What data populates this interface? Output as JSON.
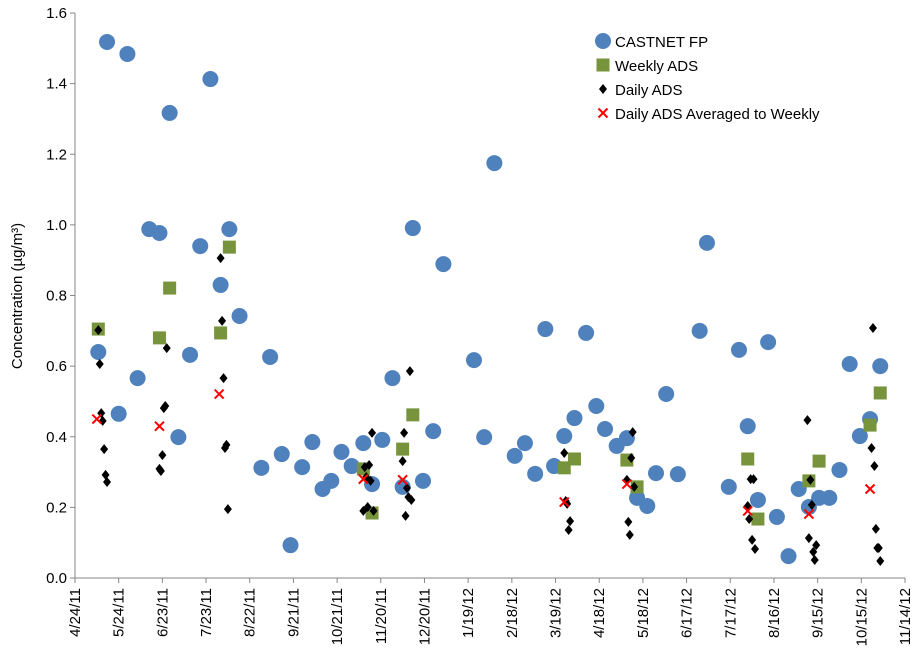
{
  "chart_data": {
    "type": "scatter",
    "y_label": "Concentration (µg/m³)",
    "xlim": [
      "2011-04-24",
      "2012-11-14"
    ],
    "xticks": [
      {
        "value": "2011-04-24",
        "label": "4/24/11"
      },
      {
        "value": "2011-05-24",
        "label": "5/24/11"
      },
      {
        "value": "2011-06-23",
        "label": "6/23/11"
      },
      {
        "value": "2011-07-23",
        "label": "7/23/11"
      },
      {
        "value": "2011-08-22",
        "label": "8/22/11"
      },
      {
        "value": "2011-09-21",
        "label": "9/21/11"
      },
      {
        "value": "2011-10-21",
        "label": "10/21/11"
      },
      {
        "value": "2011-11-20",
        "label": "11/20/11"
      },
      {
        "value": "2011-12-20",
        "label": "12/20/11"
      },
      {
        "value": "2012-01-19",
        "label": "1/19/12"
      },
      {
        "value": "2012-02-18",
        "label": "2/18/12"
      },
      {
        "value": "2012-03-19",
        "label": "3/19/12"
      },
      {
        "value": "2012-04-18",
        "label": "4/18/12"
      },
      {
        "value": "2012-05-18",
        "label": "5/18/12"
      },
      {
        "value": "2012-06-17",
        "label": "6/17/12"
      },
      {
        "value": "2012-07-17",
        "label": "7/17/12"
      },
      {
        "value": "2012-08-16",
        "label": "8/16/12"
      },
      {
        "value": "2012-09-15",
        "label": "9/15/12"
      },
      {
        "value": "2012-10-15",
        "label": "10/15/12"
      },
      {
        "value": "2012-11-14",
        "label": "11/14/12"
      }
    ],
    "ylim": [
      0,
      1.6
    ],
    "yticks": [
      {
        "value": 0,
        "label": "0.0"
      },
      0.2,
      0.4,
      0.6,
      0.8,
      {
        "value": 1,
        "label": "1.0"
      },
      1.2,
      1.4,
      1.6
    ],
    "grid": false,
    "legend": "upper right",
    "series": [
      {
        "name": "CASTNET FP",
        "marker": "circle",
        "color": "#4f81bd",
        "x": [
          "2011-05-10",
          "2011-05-16",
          "2011-05-24",
          "2011-05-30",
          "2011-06-06",
          "2011-06-14",
          "2011-06-21",
          "2011-06-28",
          "2011-07-04",
          "2011-07-12",
          "2011-07-19",
          "2011-07-26",
          "2011-08-02",
          "2011-08-08",
          "2011-08-15",
          "2011-08-30",
          "2011-09-05",
          "2011-09-13",
          "2011-09-19",
          "2011-09-27",
          "2011-10-04",
          "2011-10-11",
          "2011-10-17",
          "2011-10-24",
          "2011-10-31",
          "2011-11-08",
          "2011-11-14",
          "2011-11-21",
          "2011-11-28",
          "2011-12-05",
          "2011-12-12",
          "2011-12-19",
          "2011-12-26",
          "2012-01-02",
          "2012-01-23",
          "2012-01-30",
          "2012-02-06",
          "2012-02-20",
          "2012-02-27",
          "2012-03-05",
          "2012-03-12",
          "2012-03-18",
          "2012-03-25",
          "2012-04-01",
          "2012-04-09",
          "2012-04-16",
          "2012-04-22",
          "2012-04-30",
          "2012-05-07",
          "2012-05-14",
          "2012-05-21",
          "2012-05-27",
          "2012-06-03",
          "2012-06-11",
          "2012-06-26",
          "2012-07-01",
          "2012-07-16",
          "2012-07-23",
          "2012-07-29",
          "2012-08-05",
          "2012-08-12",
          "2012-08-18",
          "2012-08-26",
          "2012-09-02",
          "2012-09-09",
          "2012-09-16",
          "2012-09-23",
          "2012-09-30",
          "2012-10-07",
          "2012-10-14",
          "2012-10-21",
          "2012-10-28"
        ],
        "values": [
          0.64,
          1.518,
          0.465,
          1.484,
          0.566,
          0.988,
          0.977,
          1.317,
          0.399,
          0.632,
          0.94,
          1.413,
          0.83,
          0.988,
          0.742,
          0.312,
          0.626,
          0.351,
          0.093,
          0.314,
          0.385,
          0.252,
          0.275,
          0.357,
          0.317,
          0.382,
          0.266,
          0.391,
          0.566,
          0.258,
          0.991,
          0.275,
          0.416,
          0.889,
          0.617,
          0.399,
          1.175,
          0.346,
          0.382,
          0.295,
          0.705,
          0.317,
          0.402,
          0.453,
          0.694,
          0.487,
          0.422,
          0.374,
          0.396,
          0.227,
          0.204,
          0.297,
          0.521,
          0.294,
          0.7,
          0.949,
          0.258,
          0.646,
          0.43,
          0.221,
          0.668,
          0.173,
          0.062,
          0.252,
          0.201,
          0.227,
          0.227,
          0.306,
          0.606,
          0.402,
          0.45,
          0.6
        ]
      },
      {
        "name": "Weekly ADS",
        "marker": "square",
        "color": "#77933c",
        "x": [
          "2011-05-10",
          "2011-06-21",
          "2011-06-28",
          "2011-08-02",
          "2011-08-08",
          "2011-11-08",
          "2011-11-14",
          "2011-12-05",
          "2011-12-12",
          "2012-03-25",
          "2012-04-01",
          "2012-05-07",
          "2012-05-14",
          "2012-07-29",
          "2012-08-05",
          "2012-09-09",
          "2012-09-16",
          "2012-10-21",
          "2012-10-28"
        ],
        "values": [
          0.705,
          0.68,
          0.821,
          0.694,
          0.937,
          0.309,
          0.184,
          0.365,
          0.462,
          0.312,
          0.337,
          0.334,
          0.258,
          0.337,
          0.167,
          0.275,
          0.331,
          0.433,
          0.524
        ]
      },
      {
        "name": "Daily ADS",
        "marker": "diamond",
        "color": "#000000",
        "x": [
          "2011-05-10",
          "2011-05-11",
          "2011-05-12",
          "2011-05-13",
          "2011-05-14",
          "2011-05-15",
          "2011-05-16",
          "2011-06-21",
          "2011-06-22",
          "2011-06-23",
          "2011-06-24",
          "2011-06-25",
          "2011-06-26",
          "2011-08-02",
          "2011-08-03",
          "2011-08-04",
          "2011-08-05",
          "2011-08-06",
          "2011-08-07",
          "2011-11-08",
          "2011-11-09",
          "2011-11-10",
          "2011-11-11",
          "2011-11-12",
          "2011-11-13",
          "2011-11-14",
          "2011-11-15",
          "2011-12-05",
          "2011-12-06",
          "2011-12-07",
          "2011-12-08",
          "2011-12-09",
          "2011-12-10",
          "2011-12-11",
          "2012-03-25",
          "2012-03-26",
          "2012-03-27",
          "2012-03-28",
          "2012-03-29",
          "2012-05-07",
          "2012-05-08",
          "2012-05-09",
          "2012-05-10",
          "2012-05-11",
          "2012-05-12",
          "2012-07-29",
          "2012-07-30",
          "2012-07-31",
          "2012-08-01",
          "2012-08-02",
          "2012-08-03",
          "2012-09-08",
          "2012-09-09",
          "2012-09-10",
          "2012-09-11",
          "2012-09-12",
          "2012-09-13",
          "2012-09-14",
          "2012-10-22",
          "2012-10-23",
          "2012-10-24",
          "2012-10-25",
          "2012-10-26",
          "2012-10-27",
          "2012-10-28"
        ],
        "values": [
          0.702,
          0.606,
          0.467,
          0.445,
          0.365,
          0.292,
          0.272,
          0.309,
          0.303,
          0.348,
          0.481,
          0.487,
          0.651,
          0.906,
          0.728,
          0.566,
          0.368,
          0.377,
          0.195,
          0.19,
          0.314,
          0.286,
          0.201,
          0.32,
          0.275,
          0.411,
          0.19,
          0.331,
          0.411,
          0.176,
          0.255,
          0.229,
          0.586,
          0.221,
          0.354,
          0.218,
          0.21,
          0.136,
          0.161,
          0.278,
          0.159,
          0.122,
          0.34,
          0.413,
          0.258,
          0.204,
          0.167,
          0.28,
          0.108,
          0.28,
          0.082,
          0.447,
          0.113,
          0.278,
          0.207,
          0.074,
          0.051,
          0.093,
          0.368,
          0.708,
          0.317,
          0.139,
          0.085,
          0.085,
          0.048
        ]
      },
      {
        "name": "Daily ADS Averaged to Weekly",
        "marker": "x",
        "color": "#ff0000",
        "x": [
          "2011-05-09",
          "2011-06-21",
          "2011-08-01",
          "2011-11-08",
          "2011-12-05",
          "2012-03-25",
          "2012-05-07",
          "2012-07-29",
          "2012-09-09",
          "2012-10-21"
        ],
        "values": [
          0.45,
          0.43,
          0.521,
          0.28,
          0.278,
          0.215,
          0.266,
          0.19,
          0.181,
          0.252
        ]
      }
    ]
  }
}
